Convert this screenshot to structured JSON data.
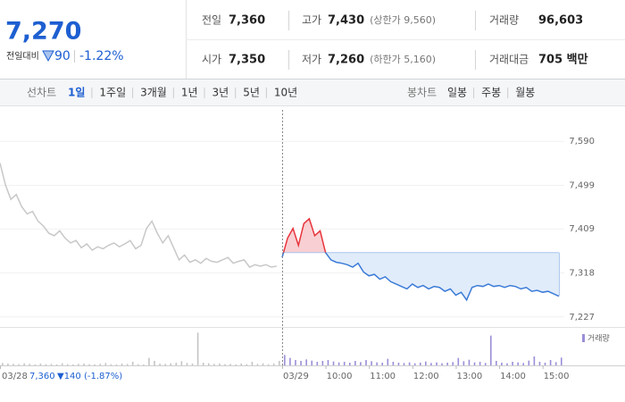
{
  "header": {
    "price": "7,270",
    "change_label": "전일대비",
    "change": "90",
    "change_rate": "-1.22%"
  },
  "summary": {
    "rows": [
      [
        {
          "label": "전일",
          "value": "7,360"
        },
        {
          "label": "고가",
          "value": "7,430",
          "note": "(상한가 9,560)"
        },
        {
          "label": "거래량",
          "value": "96,603"
        }
      ],
      [
        {
          "label": "시가",
          "value": "7,350"
        },
        {
          "label": "저가",
          "value": "7,260",
          "note": "(하한가 5,160)"
        },
        {
          "label": "거래대금",
          "value": "705 백만"
        }
      ]
    ]
  },
  "tabs": {
    "line_label": "선차트",
    "line_periods": [
      "1일",
      "1주일",
      "3개월",
      "1년",
      "3년",
      "5년",
      "10년"
    ],
    "candle_label": "봉차트",
    "candle_periods": [
      "일봉",
      "주봉",
      "월봉"
    ]
  },
  "day_summary": {
    "close": "7,360",
    "change": "▼140 (-1.87%)"
  },
  "chart_data": {
    "type": "line",
    "categories": [
      "03/28",
      null,
      null,
      null,
      null,
      null,
      null,
      null,
      null,
      null,
      null,
      null,
      null,
      null,
      null,
      null,
      null,
      null,
      null,
      null,
      null,
      null,
      null,
      null,
      null,
      null,
      null,
      null,
      null,
      null,
      null,
      null,
      null,
      null,
      null,
      null,
      null,
      null,
      null,
      null,
      null,
      null,
      null,
      null,
      null,
      null,
      null,
      null,
      null,
      null,
      null,
      null,
      "03/29",
      null,
      null,
      null,
      null,
      null,
      null,
      null,
      "10:00",
      null,
      null,
      null,
      null,
      null,
      null,
      null,
      "11:00",
      null,
      null,
      null,
      null,
      null,
      null,
      null,
      "12:00",
      null,
      null,
      null,
      null,
      null,
      null,
      null,
      "13:00",
      null,
      null,
      null,
      null,
      null,
      null,
      null,
      "14:00",
      null,
      null,
      null,
      null,
      null,
      null,
      null,
      "15:00",
      null,
      null,
      null
    ],
    "series": [
      {
        "color": "#c8c8c8",
        "values": [
          7545,
          7500,
          7470,
          7480,
          7455,
          7440,
          7445,
          7425,
          7415,
          7400,
          7395,
          7405,
          7390,
          7380,
          7385,
          7370,
          7378,
          7365,
          7372,
          7368,
          7375,
          7380,
          7372,
          7378,
          7385,
          7368,
          7375,
          7410,
          7425,
          7400,
          7380,
          7395,
          7370,
          7345,
          7355,
          7340,
          7345,
          7338,
          7348,
          7342,
          7340,
          7345,
          7350,
          7338,
          7342,
          7345,
          7330,
          7335,
          7332,
          7335,
          7330,
          7332,
          null,
          null,
          null,
          null,
          null,
          null,
          null,
          null,
          null,
          null,
          null,
          null,
          null,
          null,
          null,
          null,
          null,
          null,
          null,
          null,
          null,
          null,
          null,
          null,
          null,
          null,
          null,
          null,
          null,
          null,
          null,
          null,
          null,
          null,
          null,
          null,
          null,
          null,
          null,
          null,
          null,
          null,
          null,
          null,
          null,
          null,
          null,
          null,
          null,
          null,
          null,
          null
        ]
      },
      {
        "up_color": "#e8343c",
        "down_color": "#3b7bd8",
        "up_fill": "#f8cfd2",
        "down_fill": "#e1ecfa",
        "values": [
          null,
          null,
          null,
          null,
          null,
          null,
          null,
          null,
          null,
          null,
          null,
          null,
          null,
          null,
          null,
          null,
          null,
          null,
          null,
          null,
          null,
          null,
          null,
          null,
          null,
          null,
          null,
          null,
          null,
          null,
          null,
          null,
          null,
          null,
          null,
          null,
          null,
          null,
          null,
          null,
          null,
          null,
          null,
          null,
          null,
          null,
          null,
          null,
          null,
          null,
          null,
          null,
          7350,
          7390,
          7410,
          7375,
          7420,
          7430,
          7395,
          7405,
          7360,
          7345,
          7340,
          7338,
          7335,
          7330,
          7338,
          7320,
          7312,
          7315,
          7305,
          7310,
          7300,
          7295,
          7290,
          7285,
          7295,
          7288,
          7292,
          7285,
          7290,
          7288,
          7280,
          7285,
          7272,
          7278,
          7262,
          7288,
          7292,
          7290,
          7295,
          7290,
          7292,
          7288,
          7292,
          7290,
          7285,
          7288,
          7280,
          7282,
          7278,
          7280,
          7275,
          7270
        ]
      }
    ],
    "baseline": 7360,
    "ylim": [
      7210,
      7655
    ],
    "yticks": [
      {
        "value": 7590,
        "label": "7,590"
      },
      {
        "value": 7499,
        "label": "7,499"
      },
      {
        "value": 7409,
        "label": "7,409"
      },
      {
        "value": 7318,
        "label": "7,318"
      },
      {
        "value": 7227,
        "label": "7,227"
      }
    ],
    "grid": true,
    "volume": {
      "name": "거래량",
      "color": "#9b8ed8",
      "prev_color": "#c4c4c4",
      "ylim": [
        0,
        12000
      ],
      "values": [
        800,
        600,
        500,
        400,
        700,
        500,
        300,
        600,
        400,
        500,
        300,
        700,
        400,
        300,
        500,
        600,
        400,
        300,
        500,
        800,
        400,
        300,
        600,
        500,
        1200,
        400,
        300,
        2500,
        1500,
        600,
        500,
        700,
        900,
        1400,
        800,
        600,
        11000,
        900,
        700,
        500,
        600,
        400,
        500,
        300,
        600,
        400,
        1200,
        500,
        700,
        400,
        600,
        1500,
        3500,
        2500,
        1800,
        1500,
        2000,
        1600,
        1200,
        1500,
        1800,
        1300,
        1000,
        1200,
        900,
        1500,
        1100,
        1800,
        1400,
        1000,
        900,
        2200,
        1200,
        900,
        800,
        1000,
        700,
        900,
        1300,
        800,
        1000,
        700,
        900,
        1100,
        2500,
        1400,
        1900,
        1000,
        1200,
        800,
        10000,
        1500,
        900,
        700,
        1200,
        1000,
        800,
        1600,
        3000,
        1200,
        900,
        1800,
        1100,
        2600
      ]
    }
  }
}
